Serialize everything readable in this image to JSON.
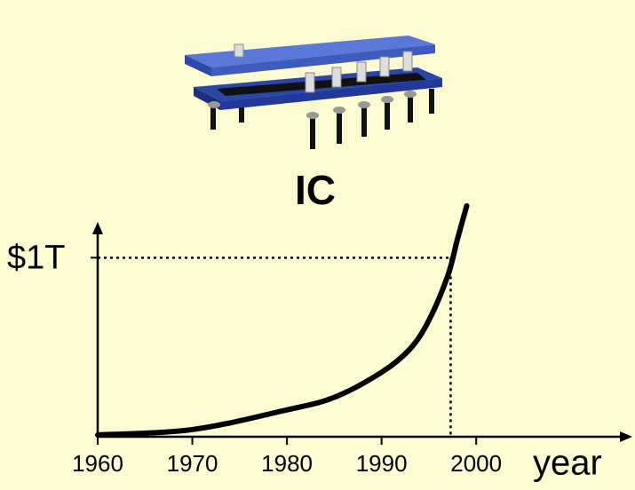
{
  "chart_data": {
    "type": "line",
    "title": "IC",
    "x_label": "year",
    "x": [
      1960,
      1970,
      1980,
      1985,
      1990,
      1993,
      1995,
      1997,
      1998,
      1999
    ],
    "values": [
      0.01,
      0.04,
      0.15,
      0.22,
      0.36,
      0.49,
      0.65,
      0.9,
      1.1,
      1.29
    ],
    "color": "#000000",
    "xlim": [
      1960,
      2016.5
    ],
    "xticks": [
      1960,
      1970,
      1980,
      1990,
      2000
    ],
    "ylim": [
      0,
      1.2
    ],
    "yticks": [
      {
        "value": 1,
        "label": "$1T"
      }
    ],
    "guide": {
      "x": 1997.3,
      "y": 1
    }
  }
}
